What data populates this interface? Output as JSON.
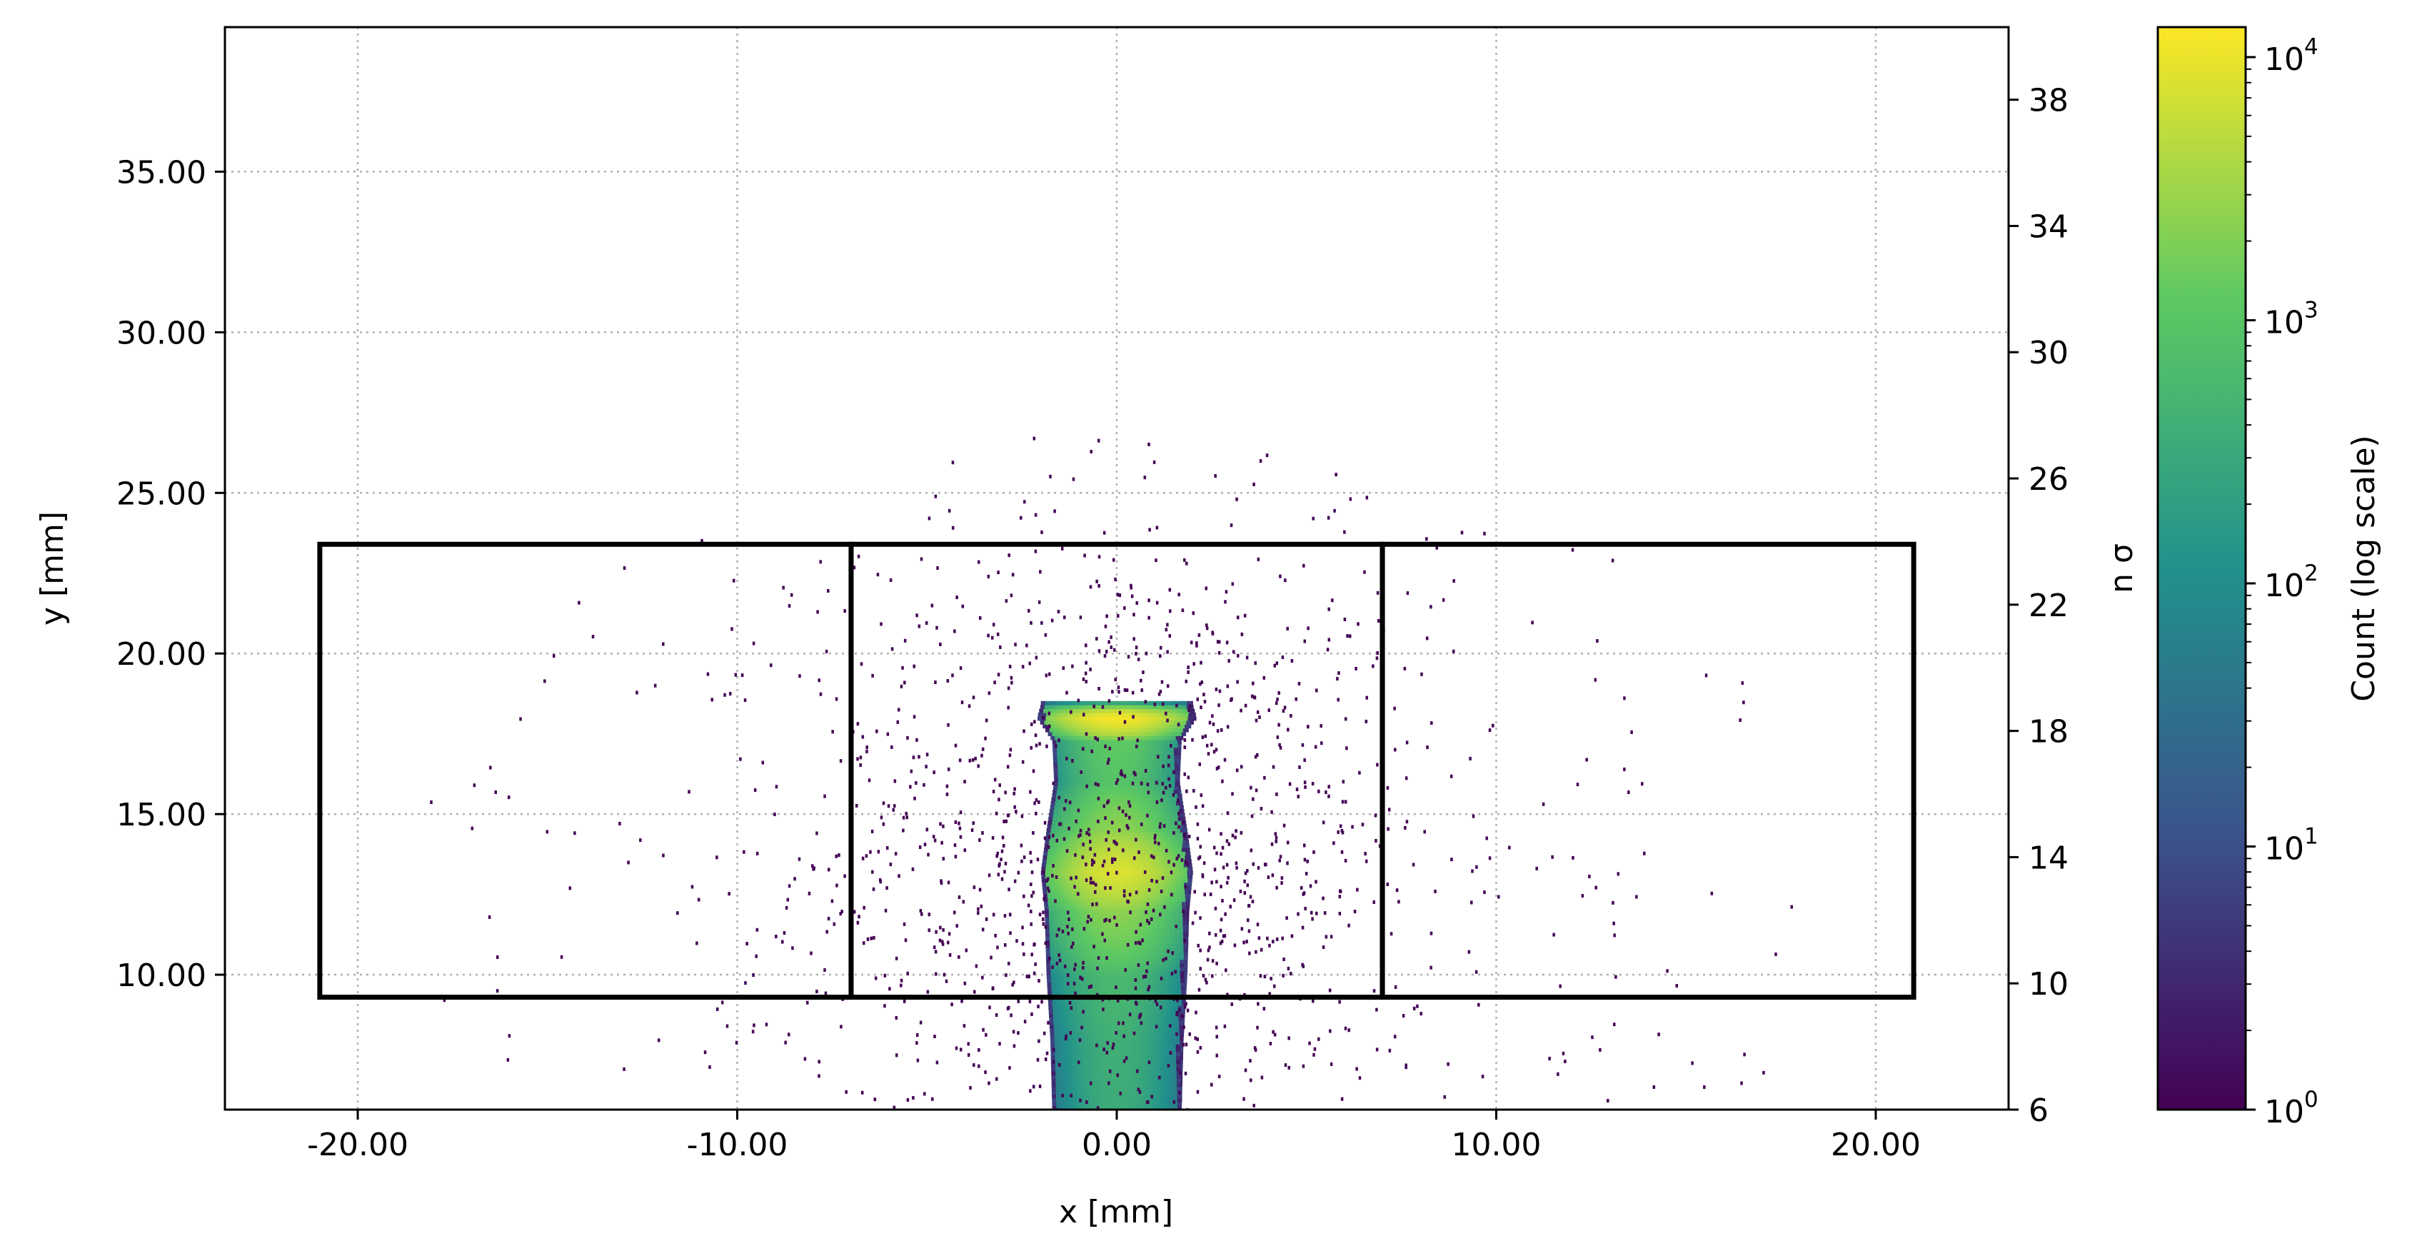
{
  "chart_data": {
    "type": "heatmap",
    "title": "",
    "xlabel": "x [mm]",
    "ylabel": "y [mm]",
    "y2label": "n σ",
    "colorbar_label": "Count (log scale)",
    "colormap": "viridis",
    "colormap_stops": [
      "#440154",
      "#3b528b",
      "#21918c",
      "#5ec962",
      "#fde725"
    ],
    "xlim": [
      -23.5,
      23.5
    ],
    "ylim": [
      5.8,
      39.5
    ],
    "y2lim": [
      6,
      40.3
    ],
    "clim": [
      1,
      13000
    ],
    "color_scale": "log",
    "grid": true,
    "x_ticks": [
      -20,
      -10,
      0,
      10,
      20
    ],
    "x_tick_labels": [
      "-20.00",
      "-10.00",
      "0.00",
      "10.00",
      "20.00"
    ],
    "y_ticks": [
      10,
      15,
      20,
      25,
      30,
      35
    ],
    "y_tick_labels": [
      "10.00",
      "15.00",
      "20.00",
      "25.00",
      "30.00",
      "35.00"
    ],
    "y2_ticks": [
      6,
      10,
      14,
      18,
      22,
      26,
      30,
      34,
      38
    ],
    "y2_tick_labels": [
      "6",
      "10",
      "14",
      "18",
      "22",
      "26",
      "30",
      "34",
      "38"
    ],
    "colorbar_ticks": [
      {
        "value": 1,
        "base": "10",
        "exp": "0"
      },
      {
        "value": 10,
        "base": "10",
        "exp": "1"
      },
      {
        "value": 100,
        "base": "10",
        "exp": "2"
      },
      {
        "value": 1000,
        "base": "10",
        "exp": "3"
      },
      {
        "value": 10000,
        "base": "10",
        "exp": "4"
      }
    ],
    "beam_core": {
      "x_center": 0.0,
      "y_range": [
        5.8,
        18.4
      ],
      "profile": [
        {
          "y": 5.8,
          "half_width": 1.7,
          "peak_count": 350
        },
        {
          "y": 8.0,
          "half_width": 1.75,
          "peak_count": 400
        },
        {
          "y": 10.0,
          "half_width": 1.85,
          "peak_count": 600
        },
        {
          "y": 12.0,
          "half_width": 1.9,
          "peak_count": 2500
        },
        {
          "y": 13.2,
          "half_width": 2.0,
          "peak_count": 8000
        },
        {
          "y": 14.5,
          "half_width": 1.85,
          "peak_count": 2500
        },
        {
          "y": 16.0,
          "half_width": 1.65,
          "peak_count": 900
        },
        {
          "y": 17.3,
          "half_width": 1.7,
          "peak_count": 1200
        },
        {
          "y": 18.0,
          "half_width": 2.1,
          "peak_count": 12000
        },
        {
          "y": 18.4,
          "half_width": 2.0,
          "peak_count": 300
        }
      ]
    },
    "halo": {
      "x_center": 0.0,
      "extent_x": 19,
      "extent_y_max": 27,
      "count": 1
    }
  },
  "overlays": {
    "regions": [
      {
        "x0": -21.0,
        "x1": -7.0,
        "y0": 9.3,
        "y1": 23.4
      },
      {
        "x0": -7.0,
        "x1": 7.0,
        "y0": 9.3,
        "y1": 23.4
      },
      {
        "x0": 7.0,
        "x1": 21.0,
        "y0": 9.3,
        "y1": 23.4
      }
    ],
    "color": "#000000"
  }
}
